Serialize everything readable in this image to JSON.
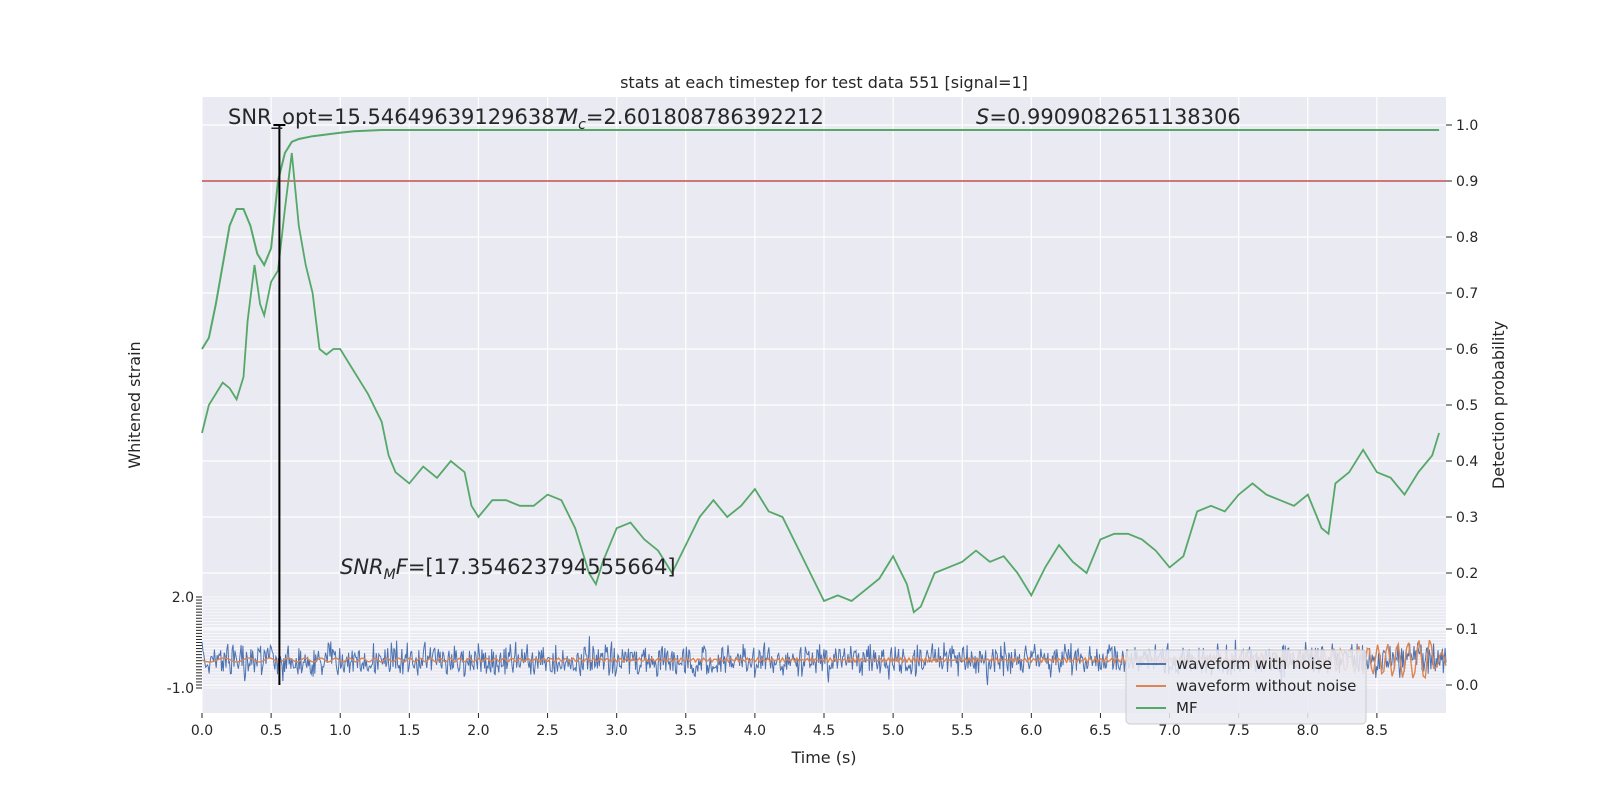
{
  "chart_data": {
    "type": "line",
    "title": "stats at each timestep for test data 551 [signal=1]",
    "xlabel": "Time (s)",
    "ylabel_left": "Whitened strain",
    "ylabel_right": "Detection probability",
    "xlim": [
      0.0,
      9.0
    ],
    "ylim_right": [
      -0.05,
      1.05
    ],
    "x_ticks": [
      "0.0",
      "0.5",
      "1.0",
      "1.5",
      "2.0",
      "2.5",
      "3.0",
      "3.5",
      "4.0",
      "4.5",
      "5.0",
      "5.5",
      "6.0",
      "6.5",
      "7.0",
      "7.5",
      "8.0",
      "8.5"
    ],
    "y_ticks_right": [
      "0.0",
      "0.1",
      "0.2",
      "0.3",
      "0.4",
      "0.5",
      "0.6",
      "0.7",
      "0.8",
      "0.9",
      "1.0"
    ],
    "y_ticks_left_visible": [
      "2.0",
      "-1.0"
    ],
    "grid": true,
    "annotations": {
      "snr_opt": "SNR_opt=15.546496391296387",
      "mc": "=2.601808786392212",
      "s": "=0.9909082651138306",
      "snr_mf": "=[17.354623794555664]"
    },
    "threshold": 0.9,
    "peak_marker_x": 0.56,
    "legend": [
      "waveform with noise",
      "waveform without noise",
      "MF"
    ],
    "legend_position": "lower right",
    "colors": {
      "noise": "#4c72b0",
      "signal": "#dd8452",
      "mf": "#55a868",
      "threshold": "#c44e52",
      "marker": "#000000",
      "background": "#eaeaf2"
    },
    "series": [
      {
        "name": "MF",
        "role": "smooth MF output",
        "x": [
          0.0,
          0.05,
          0.1,
          0.15,
          0.2,
          0.25,
          0.3,
          0.35,
          0.4,
          0.45,
          0.5,
          0.55,
          0.6,
          0.65,
          0.7,
          0.8,
          0.9,
          1.0,
          1.1,
          1.2,
          1.3,
          1.4,
          1.5,
          2.0,
          3.0,
          4.0,
          5.0,
          6.0,
          7.0,
          8.0,
          8.95
        ],
        "values": [
          0.6,
          0.62,
          0.68,
          0.75,
          0.82,
          0.85,
          0.85,
          0.82,
          0.77,
          0.75,
          0.78,
          0.9,
          0.95,
          0.97,
          0.975,
          0.98,
          0.983,
          0.986,
          0.989,
          0.99,
          0.991,
          0.991,
          0.991,
          0.991,
          0.991,
          0.991,
          0.991,
          0.991,
          0.991,
          0.991,
          0.991
        ]
      },
      {
        "name": "MF",
        "role": "noisy detection trace",
        "x": [
          0.0,
          0.05,
          0.1,
          0.15,
          0.2,
          0.25,
          0.3,
          0.33,
          0.38,
          0.42,
          0.45,
          0.5,
          0.55,
          0.6,
          0.65,
          0.7,
          0.75,
          0.8,
          0.85,
          0.9,
          0.95,
          1.0,
          1.1,
          1.2,
          1.3,
          1.35,
          1.4,
          1.5,
          1.6,
          1.7,
          1.8,
          1.9,
          1.95,
          2.0,
          2.1,
          2.2,
          2.3,
          2.4,
          2.5,
          2.6,
          2.7,
          2.8,
          2.85,
          2.9,
          3.0,
          3.1,
          3.2,
          3.3,
          3.4,
          3.5,
          3.6,
          3.7,
          3.8,
          3.9,
          4.0,
          4.1,
          4.2,
          4.3,
          4.4,
          4.5,
          4.6,
          4.7,
          4.8,
          4.9,
          5.0,
          5.1,
          5.15,
          5.2,
          5.3,
          5.4,
          5.5,
          5.6,
          5.7,
          5.8,
          5.9,
          6.0,
          6.1,
          6.2,
          6.3,
          6.4,
          6.5,
          6.6,
          6.7,
          6.8,
          6.9,
          7.0,
          7.1,
          7.2,
          7.3,
          7.4,
          7.5,
          7.6,
          7.7,
          7.8,
          7.9,
          8.0,
          8.1,
          8.15,
          8.2,
          8.3,
          8.4,
          8.5,
          8.6,
          8.7,
          8.8,
          8.9,
          8.95
        ],
        "values": [
          0.45,
          0.5,
          0.52,
          0.54,
          0.53,
          0.51,
          0.55,
          0.65,
          0.75,
          0.68,
          0.66,
          0.72,
          0.74,
          0.85,
          0.95,
          0.82,
          0.75,
          0.7,
          0.6,
          0.59,
          0.6,
          0.6,
          0.56,
          0.52,
          0.47,
          0.41,
          0.38,
          0.36,
          0.39,
          0.37,
          0.4,
          0.38,
          0.32,
          0.3,
          0.33,
          0.33,
          0.32,
          0.32,
          0.34,
          0.33,
          0.28,
          0.2,
          0.18,
          0.22,
          0.28,
          0.29,
          0.26,
          0.24,
          0.2,
          0.25,
          0.3,
          0.33,
          0.3,
          0.32,
          0.35,
          0.31,
          0.3,
          0.25,
          0.2,
          0.15,
          0.16,
          0.15,
          0.17,
          0.19,
          0.23,
          0.18,
          0.13,
          0.14,
          0.2,
          0.21,
          0.22,
          0.24,
          0.22,
          0.23,
          0.2,
          0.16,
          0.21,
          0.25,
          0.22,
          0.2,
          0.26,
          0.27,
          0.27,
          0.26,
          0.24,
          0.21,
          0.23,
          0.31,
          0.32,
          0.31,
          0.34,
          0.36,
          0.34,
          0.33,
          0.32,
          0.34,
          0.28,
          0.27,
          0.36,
          0.38,
          0.42,
          0.38,
          0.37,
          0.34,
          0.38,
          0.41,
          0.45
        ]
      }
    ]
  }
}
